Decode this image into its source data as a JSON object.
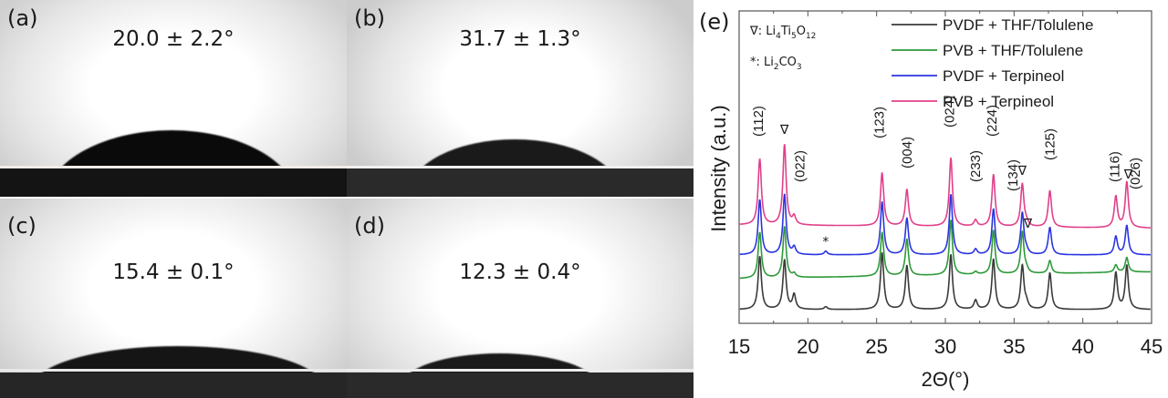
{
  "panels": [
    {
      "label": "(a)",
      "angle": "20.0 ± 2.2°"
    },
    {
      "label": "(b)",
      "angle": "31.7 ± 1.3°"
    },
    {
      "label": "(c)",
      "angle": "15.4 ± 0.1°"
    },
    {
      "label": "(d)",
      "angle": "12.3 ± 0.4°"
    }
  ],
  "chart_panel_label": "(e)",
  "chart_data": {
    "type": "line",
    "title": "",
    "xlabel": "2Θ(°)",
    "ylabel": "Intensity (a.u.)",
    "xlim": [
      15,
      45
    ],
    "xticks": [
      15,
      20,
      25,
      30,
      35,
      40,
      45
    ],
    "grid": false,
    "legend_position": "upper right",
    "annotations_note": [
      "∇: Li4Ti5O12",
      "*: Li2CO3"
    ],
    "peak_positions_2theta": [
      16.5,
      18.3,
      19.0,
      21.3,
      25.4,
      27.2,
      30.4,
      32.2,
      33.5,
      35.6,
      35.9,
      37.6,
      42.4,
      43.2
    ],
    "series": [
      {
        "name": "PVDF + THF/Tolulene",
        "color": "#3a3a3a",
        "baseline_offset": 0,
        "peak_heights": [
          58,
          54,
          16,
          3,
          62,
          48,
          60,
          10,
          55,
          48,
          6,
          40,
          40,
          48
        ]
      },
      {
        "name": "PVB + THF/Tolulene",
        "color": "#2e9a3a",
        "baseline_offset": 34,
        "peak_heights": [
          50,
          56,
          4,
          0,
          48,
          40,
          60,
          3,
          48,
          46,
          4,
          14,
          8,
          16
        ]
      },
      {
        "name": "PVDF + Terpineol",
        "color": "#2a35e0",
        "baseline_offset": 60,
        "peak_heights": [
          60,
          66,
          8,
          4,
          58,
          40,
          66,
          6,
          50,
          46,
          4,
          30,
          20,
          32
        ]
      },
      {
        "name": "PVB + Terpineol",
        "color": "#e0408a",
        "baseline_offset": 93,
        "peak_heights": [
          72,
          88,
          9,
          0,
          58,
          40,
          75,
          7,
          57,
          47,
          4,
          40,
          34,
          50
        ]
      }
    ],
    "peak_labels": [
      {
        "text": "(112)",
        "x": 16.4,
        "type": "hkl"
      },
      {
        "text": "∇",
        "x": 18.3,
        "type": "sym"
      },
      {
        "text": "(022)",
        "x": 19.4,
        "type": "hkl"
      },
      {
        "text": "*",
        "x": 21.3,
        "type": "sym"
      },
      {
        "text": "(123)",
        "x": 25.2,
        "type": "hkl"
      },
      {
        "text": "(004)",
        "x": 27.2,
        "type": "hkl"
      },
      {
        "text": "(024)",
        "x": 30.3,
        "type": "hkl"
      },
      {
        "text": "(233)",
        "x": 32.2,
        "type": "hkl"
      },
      {
        "text": "(224)",
        "x": 33.4,
        "type": "hkl"
      },
      {
        "text": "(134)",
        "x": 34.9,
        "type": "hkl"
      },
      {
        "text": "∇",
        "x": 35.6,
        "type": "sym"
      },
      {
        "text": "∇",
        "x": 36.0,
        "type": "sym"
      },
      {
        "text": "(125)",
        "x": 37.6,
        "type": "hkl"
      },
      {
        "text": "(116)",
        "x": 42.3,
        "type": "hkl"
      },
      {
        "text": "∇",
        "x": 43.3,
        "type": "sym"
      },
      {
        "text": "(026)",
        "x": 43.8,
        "type": "hkl"
      }
    ]
  },
  "legend": {
    "items": [
      {
        "label": "PVDF + THF/Tolulene",
        "color": "#3a3a3a"
      },
      {
        "label": "PVB + THF/Tolulene",
        "color": "#2e9a3a"
      },
      {
        "label": "PVDF + Terpineol",
        "color": "#2a35e0"
      },
      {
        "label": "PVB + Terpineol",
        "color": "#e0408a"
      }
    ]
  },
  "notes": {
    "lto_symbol": "∇",
    "lto_formula_parts": [
      "Li",
      "4",
      "Ti",
      "5",
      "O",
      "12"
    ],
    "lco_symbol": "*",
    "lco_formula_parts": [
      "Li",
      "2",
      "CO",
      "3"
    ]
  }
}
